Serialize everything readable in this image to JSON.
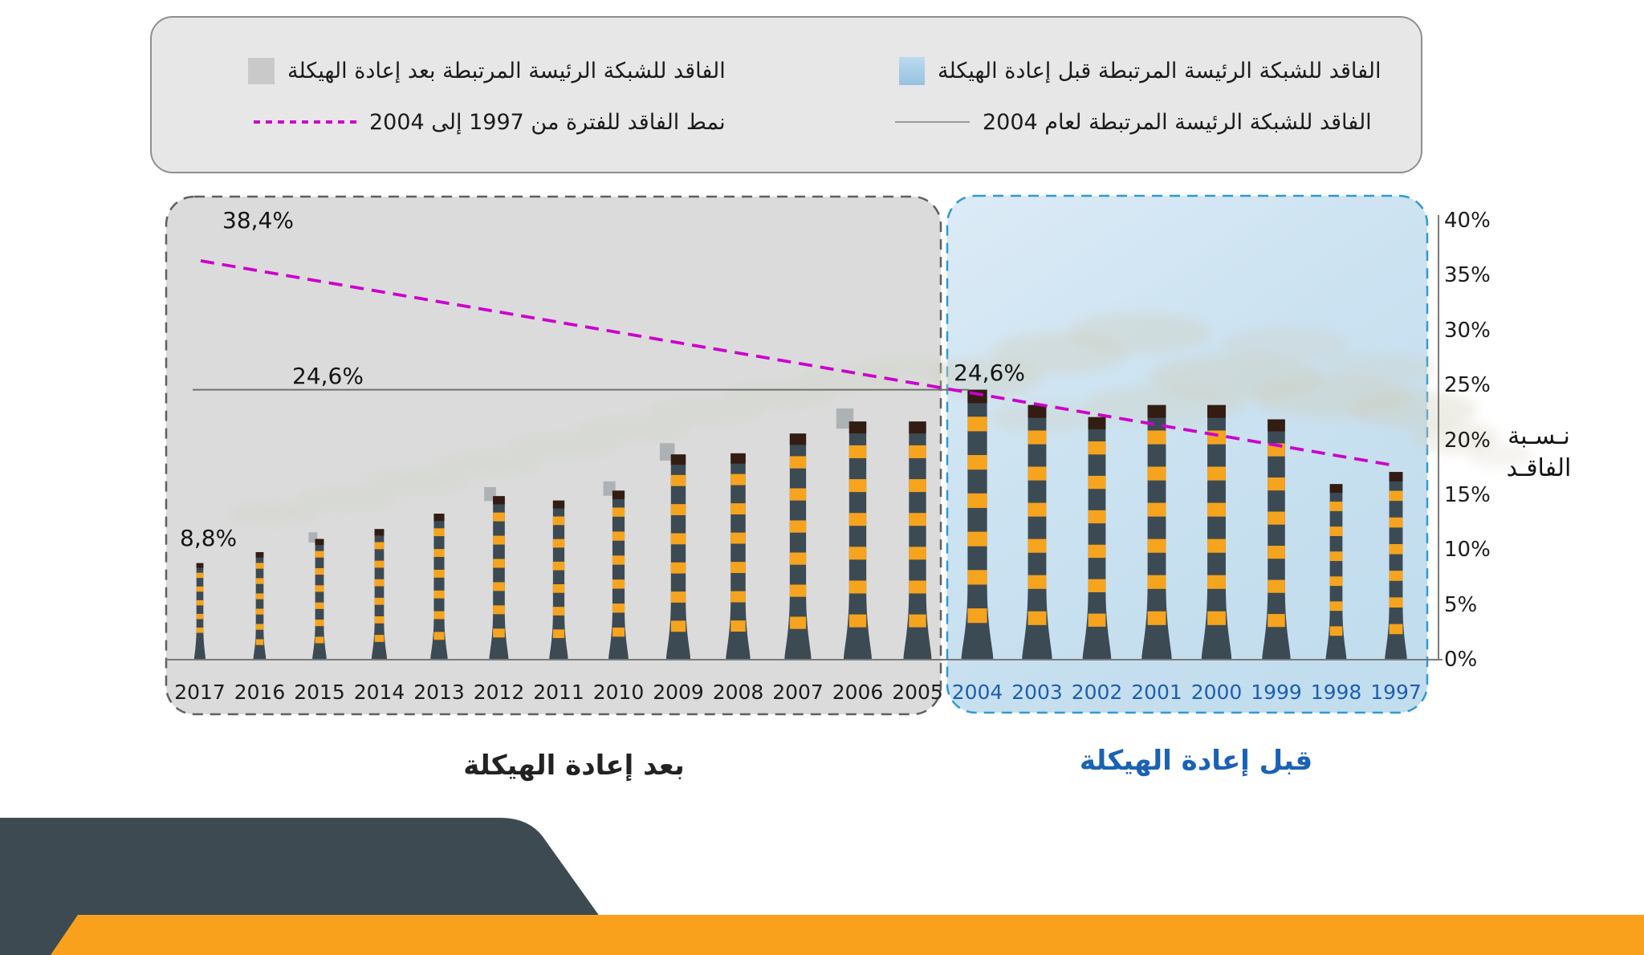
{
  "legend": {
    "items": [
      {
        "id": "before",
        "marker": "blue-square",
        "label": "الفاقد للشبكة الرئيسة المرتبطة قبل إعادة الهيكلة"
      },
      {
        "id": "year2004",
        "marker": "gray-line",
        "label": "الفاقد للشبكة الرئيسة المرتبطة لعام 2004"
      },
      {
        "id": "after",
        "marker": "gray-square",
        "label": "الفاقد للشبكة الرئيسة المرتبطة بعد إعادة الهيكلة"
      },
      {
        "id": "trend",
        "marker": "magenta-dashed",
        "label": "نمط الفاقد للفترة من 1997 إلى 2004"
      }
    ]
  },
  "chart_data": {
    "type": "bar",
    "categories": [
      "2017",
      "2016",
      "2015",
      "2014",
      "2013",
      "2012",
      "2011",
      "2010",
      "2009",
      "2008",
      "2007",
      "2006",
      "2005",
      "2004",
      "2003",
      "2002",
      "2001",
      "2000",
      "1999",
      "1998",
      "1997"
    ],
    "values": [
      8.8,
      9.8,
      11.0,
      11.9,
      13.3,
      14.9,
      14.5,
      15.4,
      18.7,
      18.8,
      20.6,
      21.7,
      21.7,
      24.6,
      23.2,
      22.1,
      23.2,
      23.2,
      21.9,
      16.0,
      17.1
    ],
    "ylabel": "نسبة الفاقد",
    "ylabel_lines": [
      "نـسـبة",
      "الفاقـد"
    ],
    "ylim": [
      0,
      40
    ],
    "ytick_step": 5,
    "ytick_suffix": "%",
    "annotations": {
      "trend_start_label": "38,4%",
      "ref_label_left": "24,6%",
      "ref_label_right": "24,6%",
      "first_bar_label": "8,8%",
      "ref_value": 24.6,
      "trend_from_value": 38.4,
      "trend_to_value": 17.7
    },
    "regions": [
      {
        "id": "after",
        "label": "بعد إعادة الهيكلة",
        "years": "2005-2017",
        "year_color": "#1c1c1c"
      },
      {
        "id": "before",
        "label": "قبل إعادة الهيكلة",
        "years": "1997-2004",
        "year_color": "#1c5fb0"
      }
    ],
    "smoke_cap_years": [
      "2015",
      "2012",
      "2010",
      "2009",
      "2006"
    ]
  },
  "colors": {
    "bar_dark": "#3c4a54",
    "bar_stripe": "#f6a41e",
    "bar_cap": "#331c12",
    "magenta": "#cc00cc",
    "axis": "#7a7a7a",
    "region_after_fill": "#dbdbdb",
    "region_after_border": "#5f5f5f",
    "region_before_border": "#2f9ad2",
    "footer_dark": "#3d4a52",
    "footer_orange": "#f9a11c"
  }
}
